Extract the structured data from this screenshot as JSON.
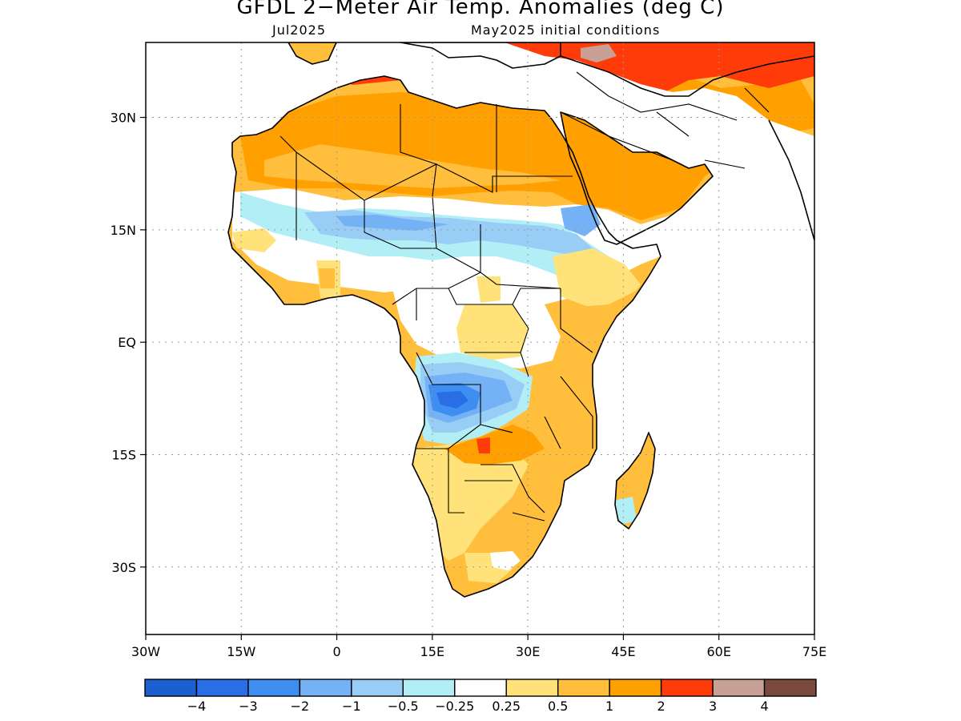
{
  "title": "GFDL 2−Meter Air Temp. Anomalies (deg C)",
  "subtitle_left": "Jul2025",
  "subtitle_right": "May2025 initial conditions",
  "map": {
    "lon_range": [
      -30,
      75
    ],
    "lat_range": [
      -39,
      40
    ],
    "lat_ticks": [
      {
        "lat": 30,
        "label": "30N"
      },
      {
        "lat": 15,
        "label": "15N"
      },
      {
        "lat": 0,
        "label": "EQ"
      },
      {
        "lat": -15,
        "label": "15S"
      },
      {
        "lat": -30,
        "label": "30S"
      }
    ],
    "lon_ticks": [
      {
        "lon": -30,
        "label": "30W"
      },
      {
        "lon": -15,
        "label": "15W"
      },
      {
        "lon": 0,
        "label": "0"
      },
      {
        "lon": 15,
        "label": "15E"
      },
      {
        "lon": 30,
        "label": "30E"
      },
      {
        "lon": 45,
        "label": "45E"
      },
      {
        "lon": 60,
        "label": "60E"
      },
      {
        "lon": 75,
        "label": "75E"
      }
    ],
    "gridlines": true
  },
  "colorbar": {
    "colors": [
      "#1c5fcf",
      "#2a6ee6",
      "#3d8ef0",
      "#74b2f5",
      "#98cdf6",
      "#b2eef6",
      "#ffffff",
      "#ffe27a",
      "#ffbe3c",
      "#ff9f00",
      "#ff3b0a",
      "#c9a096",
      "#7a4a3e"
    ],
    "labels": [
      "−4",
      "−3",
      "−2",
      "−1",
      "−0.5",
      "−0.25",
      "0.25",
      "0.5",
      "1",
      "2",
      "3",
      "4"
    ]
  }
}
